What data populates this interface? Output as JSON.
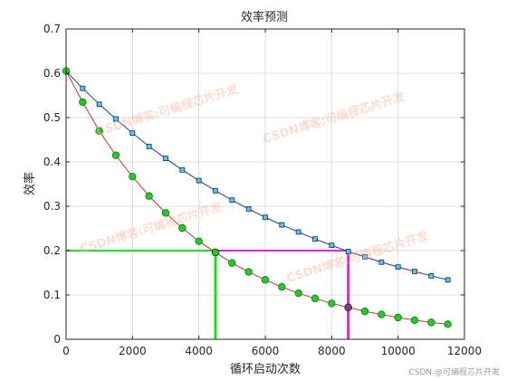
{
  "chart_data": {
    "type": "line",
    "title": "效率预测",
    "xlabel": "循环启动次数",
    "ylabel": "效率",
    "xlim": [
      0,
      12000
    ],
    "ylim": [
      0,
      0.7
    ],
    "xticks": [
      0,
      2000,
      4000,
      6000,
      8000,
      10000,
      12000
    ],
    "yticks": [
      0,
      0.1,
      0.2,
      0.3,
      0.4,
      0.5,
      0.6,
      0.7
    ],
    "xtick_labels": [
      "0",
      "2000",
      "4000",
      "6000",
      "8000",
      "10000",
      "12000"
    ],
    "ytick_labels": [
      "0",
      "0.1",
      "0.2",
      "0.3",
      "0.4",
      "0.5",
      "0.6",
      "0.7"
    ],
    "grid": true,
    "legend": "none",
    "series": [
      {
        "color": "#1f3f8f",
        "marker": "square",
        "marker_fill": "#5cc6e8",
        "x": [
          0,
          500,
          1000,
          1500,
          2000,
          2500,
          3000,
          3500,
          4000,
          4500,
          5000,
          5500,
          6000,
          6500,
          7000,
          7500,
          8000,
          8500,
          9000,
          9500,
          10000,
          10500,
          11000,
          11500
        ],
        "y": [
          0.605,
          0.566,
          0.53,
          0.497,
          0.465,
          0.435,
          0.408,
          0.382,
          0.358,
          0.335,
          0.314,
          0.294,
          0.275,
          0.258,
          0.242,
          0.226,
          0.212,
          0.198,
          0.186,
          0.174,
          0.163,
          0.153,
          0.143,
          0.134
        ]
      },
      {
        "color": "#c0392b",
        "marker": "circle",
        "marker_fill": "#22cc22",
        "x": [
          0,
          500,
          1000,
          1500,
          2000,
          2500,
          3000,
          3500,
          4000,
          4500,
          5000,
          5500,
          6000,
          6500,
          7000,
          7500,
          8000,
          8500,
          9000,
          9500,
          10000,
          10500,
          11000,
          11500
        ],
        "y": [
          0.605,
          0.535,
          0.47,
          0.415,
          0.367,
          0.323,
          0.285,
          0.251,
          0.221,
          0.196,
          0.172,
          0.152,
          0.134,
          0.118,
          0.104,
          0.092,
          0.081,
          0.072,
          0.063,
          0.056,
          0.049,
          0.043,
          0.038,
          0.034
        ]
      }
    ],
    "threshold": {
      "y": 0.2,
      "color": "#e21ee8"
    },
    "crossings": [
      {
        "x": 4500,
        "y": 0.196,
        "color": "#19e019"
      },
      {
        "x": 8500,
        "y": 0.072,
        "color": "#e21ee8"
      }
    ]
  },
  "watermark": {
    "text": "CSDN博客:可编程芯片开发"
  },
  "credit": {
    "text": "CSDN @可编程芯片开发"
  },
  "colors": {
    "axis": "#262626",
    "grid": "#dcdcdc"
  }
}
